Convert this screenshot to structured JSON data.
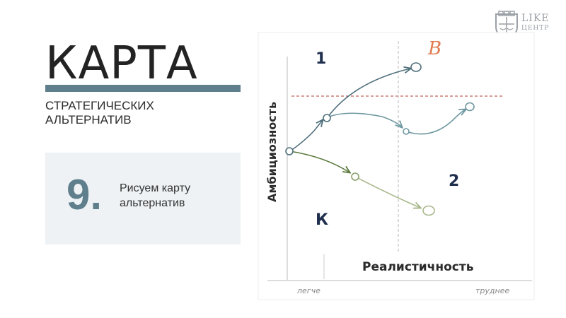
{
  "slide": {
    "title": "КАРТА",
    "subtitle_lines": [
      "СТРАТЕГИЧЕСКИХ",
      "АЛЬТЕРНАТИВ"
    ]
  },
  "step": {
    "number": "9.",
    "text_lines": [
      "Рисуем карту",
      "альтернатив"
    ]
  },
  "logo": {
    "line1": "LIKE",
    "line2": "ЦЕНТР"
  },
  "diagram": {
    "y_axis_label": "Амбициозность",
    "x_axis_label": "Реалистичность",
    "x_left_label": "легче",
    "x_right_label": "труднее",
    "zone_1": "1",
    "zone_2": "2",
    "zone_b": "B",
    "zone_k": "К",
    "colors": {
      "axis": "#dcdcdc",
      "path_upper": "#4e6f7c",
      "path_middle": "#6e98a0",
      "path_lower_a": "#5b7a3e",
      "path_lower_b": "#a8b88c",
      "guide_horizontal": "#b03a2e",
      "guide_vertical": "#b5b5b5",
      "zone_number": "#1f2e4d",
      "zone_b": "#e07a50"
    }
  }
}
